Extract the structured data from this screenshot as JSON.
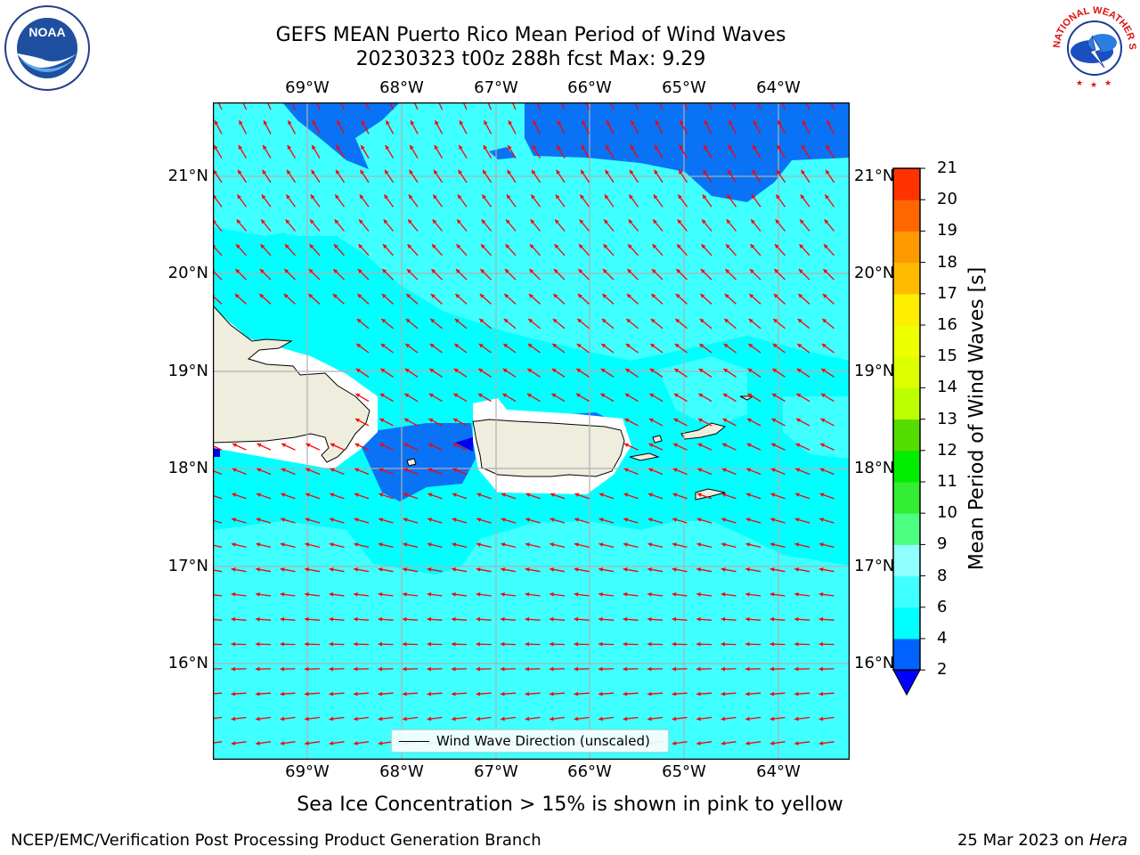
{
  "title": {
    "line1": "GEFS MEAN Puerto Rico Mean Period of Wind Waves",
    "line2": "20230323 t00z 288h fcst   Max: 9.29"
  },
  "axes": {
    "lon_ticks": [
      "69°W",
      "68°W",
      "67°W",
      "66°W",
      "65°W",
      "64°W"
    ],
    "lat_ticks": [
      "21°N",
      "20°N",
      "19°N",
      "18°N",
      "17°N",
      "16°N"
    ]
  },
  "colorbar": {
    "label": "Mean Period of Wind Waves [s]",
    "ticks": [
      "2",
      "4",
      "6",
      "8",
      "9",
      "10",
      "11",
      "12",
      "13",
      "14",
      "15",
      "16",
      "17",
      "18",
      "19",
      "20",
      "21"
    ],
    "colors": [
      "#0062ff",
      "#00ffff",
      "#40ffff",
      "#90ffff",
      "#4dff80",
      "#33ee33",
      "#00ee00",
      "#55dd00",
      "#bbff00",
      "#ddff00",
      "#eeff00",
      "#ffee00",
      "#ffbb00",
      "#ff9900",
      "#ff6600",
      "#ff3300",
      "#ff0000"
    ],
    "under_color": "#0000ff"
  },
  "legend": {
    "label": "Wind Wave Direction (unscaled)"
  },
  "sea_ice_note": "Sea Ice Concentration > 15% is shown in pink to yellow",
  "footer": {
    "left": "NCEP/EMC/Verification Post Processing Product Generation Branch",
    "right_date": "25 Mar 2023 on ",
    "right_host": "Hera"
  },
  "logos": {
    "left": "NOAA",
    "right": "NATIONAL WEATHER SERVICE"
  },
  "colors": {
    "arrow": "#ff0000",
    "land": "#efedde",
    "deep_blue": "#0a72f5",
    "cyan": "#00ffff",
    "light_cyan": "#40ffff"
  }
}
